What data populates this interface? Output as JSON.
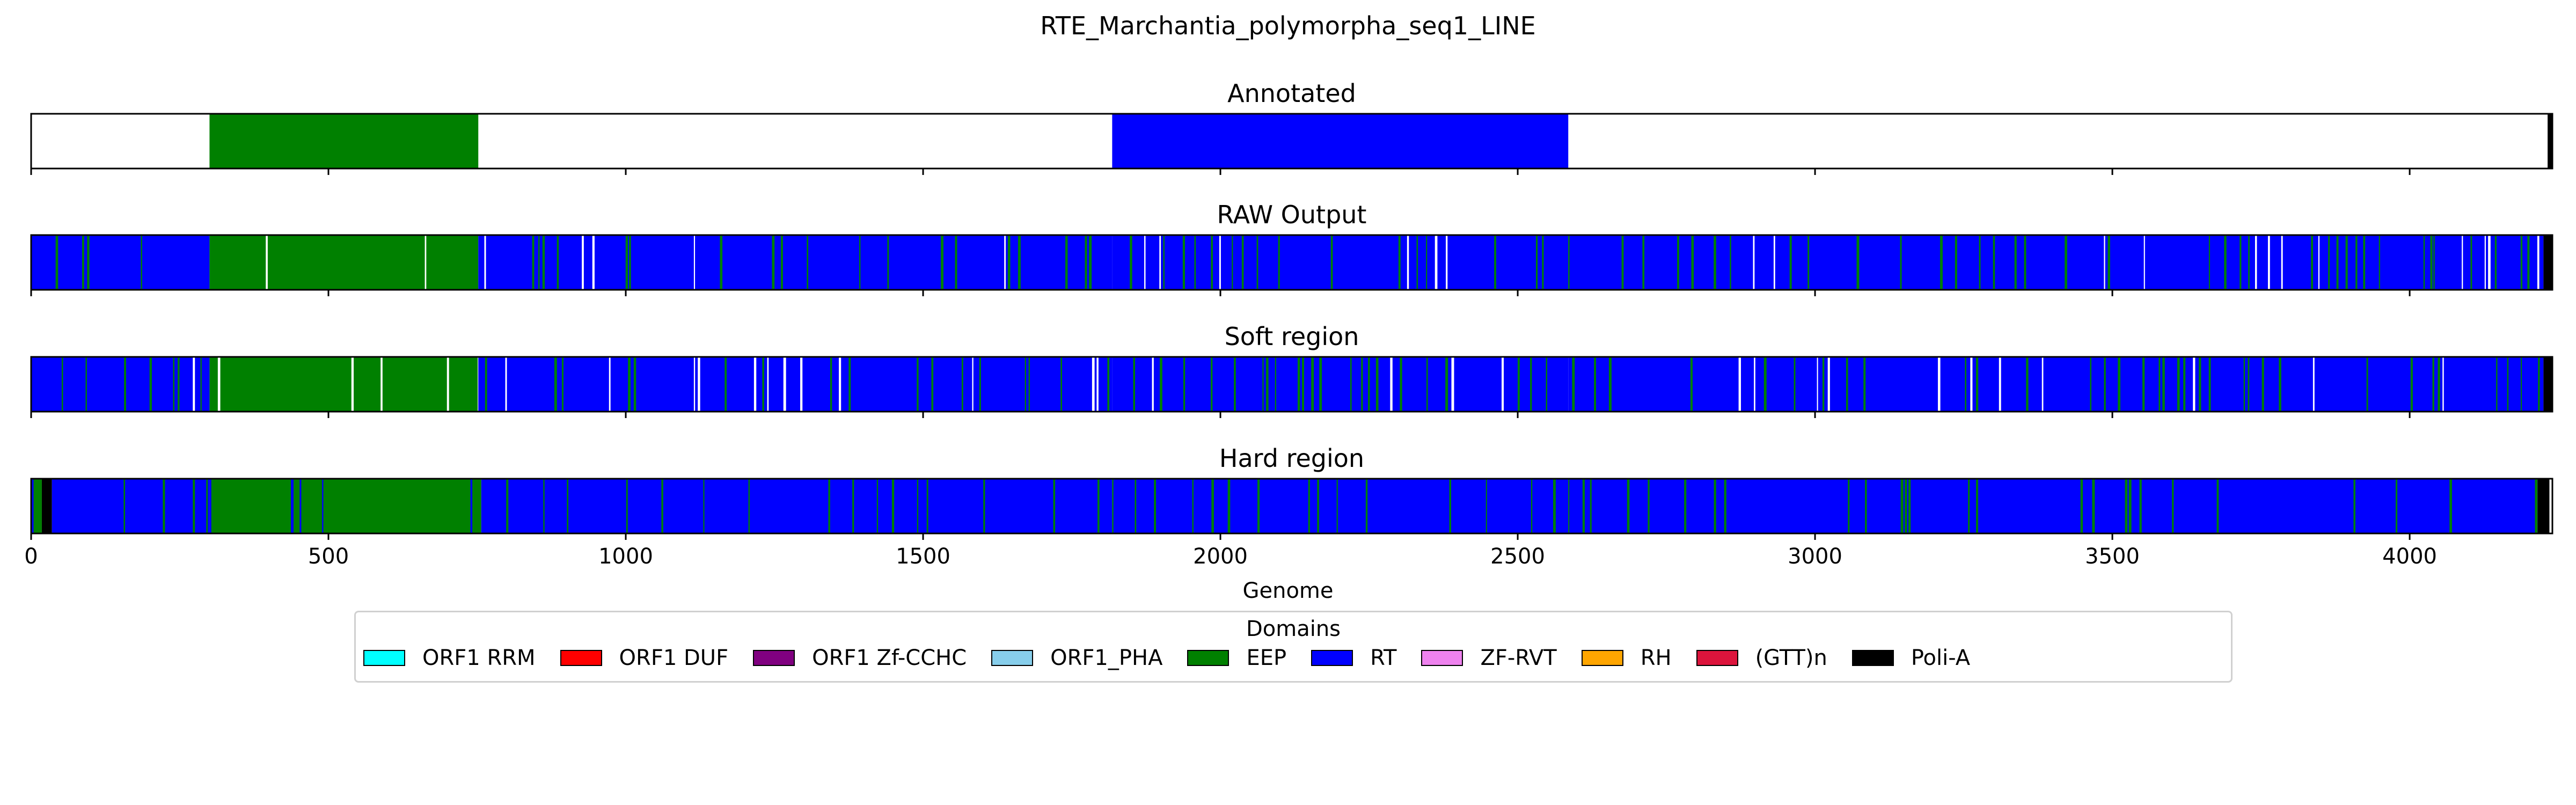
{
  "chart_data": {
    "type": "bar",
    "title": "RTE_Marchantia_polymorpha_seq1_LINE",
    "xlabel": "Genome",
    "xlim": [
      0,
      4240
    ],
    "xticks": [
      0,
      500,
      1000,
      1500,
      2000,
      2500,
      3000,
      3500,
      4000
    ],
    "xtick_labels": [
      "0",
      "500",
      "1000",
      "1500",
      "2000",
      "2500",
      "3000",
      "3500",
      "4000"
    ],
    "grid": "x on Hard region panel (dashed)",
    "legend": {
      "title": "Domains",
      "placement": "bottom-center",
      "items": [
        {
          "label": "ORF1 RRM",
          "color": "#00ffff"
        },
        {
          "label": "ORF1 DUF",
          "color": "#ff0000"
        },
        {
          "label": "ORF1 Zf-CCHC",
          "color": "#800080"
        },
        {
          "label": "ORF1_PHA",
          "color": "#87ceeb"
        },
        {
          "label": "EEP",
          "color": "#008000"
        },
        {
          "label": "RT",
          "color": "#0000ff"
        },
        {
          "label": "ZF-RVT",
          "color": "#ee82ee"
        },
        {
          "label": "RH",
          "color": "#ffa500"
        },
        {
          "label": "(GTT)n",
          "color": "#dc143c"
        },
        {
          "label": "Poli-A",
          "color": "#000000"
        }
      ]
    },
    "colors": {
      "EEP": "#008000",
      "RT": "#0000ff",
      "Poli-A": "#000000",
      "none": "#ffffff"
    },
    "panels": [
      {
        "title": "Annotated",
        "segments": [
          {
            "domain": "EEP",
            "start": 300,
            "end": 752
          },
          {
            "domain": "RT",
            "start": 1818,
            "end": 2585
          },
          {
            "domain": "Poli-A",
            "start": 4232,
            "end": 4240
          }
        ]
      },
      {
        "title": "RAW Output",
        "segments": [
          {
            "domain": "RT",
            "start": 0,
            "end": 300
          },
          {
            "domain": "EEP",
            "start": 300,
            "end": 752
          },
          {
            "domain": "RT",
            "start": 752,
            "end": 1818
          },
          {
            "domain": "RT",
            "start": 1818,
            "end": 2585
          },
          {
            "domain": "RT",
            "start": 2585,
            "end": 4225
          },
          {
            "domain": "Poli-A",
            "start": 4225,
            "end": 4240
          }
        ]
      },
      {
        "title": "Soft region",
        "segments": [
          {
            "domain": "RT",
            "start": 0,
            "end": 300
          },
          {
            "domain": "EEP",
            "start": 300,
            "end": 752
          },
          {
            "domain": "RT",
            "start": 752,
            "end": 1818
          },
          {
            "domain": "RT",
            "start": 1818,
            "end": 2585
          },
          {
            "domain": "RT",
            "start": 2585,
            "end": 4225
          },
          {
            "domain": "Poli-A",
            "start": 4225,
            "end": 4240
          }
        ]
      },
      {
        "title": "Hard region",
        "segments": [
          {
            "domain": "EEP",
            "start": 0,
            "end": 18
          },
          {
            "domain": "Poli-A",
            "start": 18,
            "end": 35
          },
          {
            "domain": "RT",
            "start": 35,
            "end": 300
          },
          {
            "domain": "EEP",
            "start": 300,
            "end": 757
          },
          {
            "domain": "RT",
            "start": 757,
            "end": 1818
          },
          {
            "domain": "RT",
            "start": 1818,
            "end": 2585
          },
          {
            "domain": "RT",
            "start": 2585,
            "end": 4215
          },
          {
            "domain": "Poli-A",
            "start": 4215,
            "end": 4235
          }
        ]
      }
    ]
  }
}
